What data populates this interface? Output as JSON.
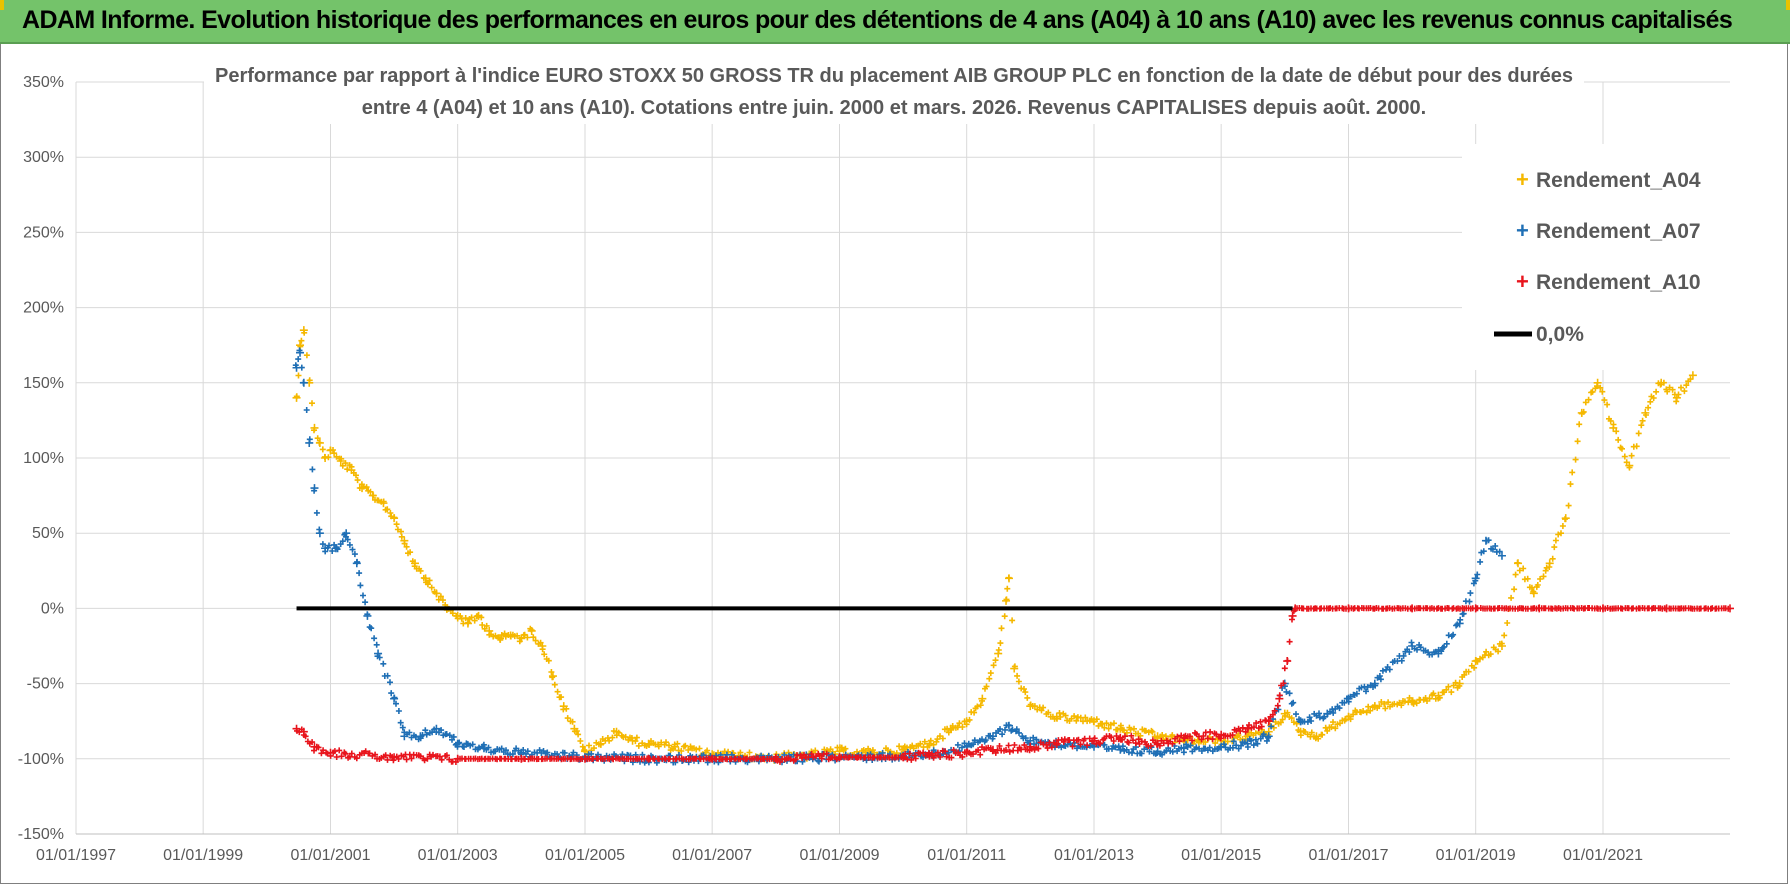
{
  "header": {
    "title": "ADAM Informe. Evolution historique des performances en euros pour des détentions de 4 ans (A04) à 10 ans (A10) avec les revenus connus capitalisés"
  },
  "chart_data": {
    "type": "scatter",
    "title_lines": [
      "Performance par rapport à l'indice EURO STOXX 50 GROSS TR  du placement AIB GROUP PLC en fonction de la date de début pour des durées",
      "entre 4 (A04) et 10 ans (A10).  Cotations entre juin. 2000 et mars. 2026.  Revenus CAPITALISES depuis août. 2000."
    ],
    "xlabel": "",
    "ylabel": "",
    "xlim": [
      "1997-01-01",
      "2022-12-31"
    ],
    "ylim": [
      -150,
      350
    ],
    "y_unit": "%",
    "y_ticks": [
      -150,
      -100,
      -50,
      0,
      50,
      100,
      150,
      200,
      250,
      300,
      350
    ],
    "y_tick_labels": [
      "-150%",
      "-100%",
      "-50%",
      "0%",
      "50%",
      "100%",
      "150%",
      "200%",
      "250%",
      "300%",
      "350%"
    ],
    "x_tick_labels": [
      "01/01/1997",
      "01/01/1999",
      "01/01/2001",
      "01/01/2003",
      "01/01/2005",
      "01/01/2007",
      "01/01/2009",
      "01/01/2011",
      "01/01/2013",
      "01/01/2015",
      "01/01/2017",
      "01/01/2019",
      "01/01/2021"
    ],
    "grid": true,
    "legend_position": "top-right",
    "series": [
      {
        "name": "Rendement_A04",
        "color": "#f5b800",
        "marker": "plus",
        "points": [
          [
            "2000-06-20",
            140
          ],
          [
            "2000-07-10",
            175
          ],
          [
            "2000-08-01",
            185
          ],
          [
            "2000-09-01",
            150
          ],
          [
            "2000-10-01",
            120
          ],
          [
            "2000-11-01",
            110
          ],
          [
            "2000-12-01",
            100
          ],
          [
            "2001-01-01",
            105
          ],
          [
            "2001-03-01",
            98
          ],
          [
            "2001-05-01",
            92
          ],
          [
            "2001-07-01",
            80
          ],
          [
            "2001-09-01",
            75
          ],
          [
            "2001-11-01",
            70
          ],
          [
            "2002-01-01",
            60
          ],
          [
            "2002-03-01",
            45
          ],
          [
            "2002-05-01",
            30
          ],
          [
            "2002-07-01",
            20
          ],
          [
            "2002-09-01",
            10
          ],
          [
            "2002-11-01",
            0
          ],
          [
            "2003-01-01",
            -5
          ],
          [
            "2003-03-01",
            -10
          ],
          [
            "2003-05-01",
            -5
          ],
          [
            "2003-07-01",
            -15
          ],
          [
            "2003-09-01",
            -20
          ],
          [
            "2003-11-01",
            -18
          ],
          [
            "2004-01-01",
            -20
          ],
          [
            "2004-03-01",
            -15
          ],
          [
            "2004-05-01",
            -25
          ],
          [
            "2004-07-01",
            -45
          ],
          [
            "2004-09-01",
            -65
          ],
          [
            "2004-11-01",
            -80
          ],
          [
            "2005-01-01",
            -95
          ],
          [
            "2005-04-01",
            -90
          ],
          [
            "2005-07-01",
            -82
          ],
          [
            "2005-10-01",
            -88
          ],
          [
            "2006-01-01",
            -90
          ],
          [
            "2006-06-01",
            -92
          ],
          [
            "2007-01-01",
            -97
          ],
          [
            "2007-06-01",
            -98
          ],
          [
            "2008-01-01",
            -99
          ],
          [
            "2008-06-01",
            -98
          ],
          [
            "2009-01-01",
            -95
          ],
          [
            "2009-06-01",
            -96
          ],
          [
            "2010-01-01",
            -94
          ],
          [
            "2010-06-01",
            -90
          ],
          [
            "2010-10-01",
            -80
          ],
          [
            "2011-01-01",
            -75
          ],
          [
            "2011-04-01",
            -60
          ],
          [
            "2011-07-01",
            -30
          ],
          [
            "2011-08-15",
            5
          ],
          [
            "2011-09-01",
            20
          ],
          [
            "2011-10-01",
            -40
          ],
          [
            "2012-01-01",
            -65
          ],
          [
            "2012-06-01",
            -72
          ],
          [
            "2013-01-01",
            -75
          ],
          [
            "2013-06-01",
            -80
          ],
          [
            "2014-01-01",
            -85
          ],
          [
            "2014-06-01",
            -88
          ],
          [
            "2015-01-01",
            -88
          ],
          [
            "2015-06-01",
            -85
          ],
          [
            "2015-10-01",
            -82
          ],
          [
            "2016-01-01",
            -70
          ],
          [
            "2016-04-01",
            -82
          ],
          [
            "2016-07-01",
            -85
          ],
          [
            "2017-01-01",
            -72
          ],
          [
            "2017-06-01",
            -65
          ],
          [
            "2018-01-01",
            -62
          ],
          [
            "2018-06-01",
            -58
          ],
          [
            "2018-10-01",
            -50
          ],
          [
            "2019-01-01",
            -35
          ],
          [
            "2019-06-01",
            -25
          ],
          [
            "2019-09-01",
            30
          ],
          [
            "2019-12-01",
            10
          ],
          [
            "2020-03-01",
            30
          ],
          [
            "2020-06-01",
            60
          ],
          [
            "2020-09-01",
            130
          ],
          [
            "2020-12-01",
            150
          ],
          [
            "2021-03-01",
            120
          ],
          [
            "2021-06-01",
            95
          ],
          [
            "2021-09-01",
            130
          ],
          [
            "2021-12-01",
            150
          ],
          [
            "2022-03-01",
            140
          ],
          [
            "2022-06-01",
            155
          ]
        ]
      },
      {
        "name": "Rendement_A07",
        "color": "#1f6fb5",
        "marker": "plus",
        "points": [
          [
            "2000-06-20",
            160
          ],
          [
            "2000-07-10",
            170
          ],
          [
            "2000-08-01",
            150
          ],
          [
            "2000-09-01",
            110
          ],
          [
            "2000-10-01",
            80
          ],
          [
            "2000-11-01",
            50
          ],
          [
            "2000-12-01",
            40
          ],
          [
            "2001-02-01",
            40
          ],
          [
            "2001-04-01",
            50
          ],
          [
            "2001-06-01",
            30
          ],
          [
            "2001-08-01",
            -5
          ],
          [
            "2001-10-01",
            -30
          ],
          [
            "2002-01-01",
            -60
          ],
          [
            "2002-03-01",
            -85
          ],
          [
            "2002-06-01",
            -85
          ],
          [
            "2002-09-01",
            -80
          ],
          [
            "2003-01-01",
            -90
          ],
          [
            "2003-06-01",
            -93
          ],
          [
            "2004-01-01",
            -96
          ],
          [
            "2005-01-01",
            -99
          ],
          [
            "2006-01-01",
            -100
          ],
          [
            "2007-01-01",
            -100
          ],
          [
            "2008-01-01",
            -100
          ],
          [
            "2009-01-01",
            -99
          ],
          [
            "2010-01-01",
            -98
          ],
          [
            "2010-06-01",
            -97
          ],
          [
            "2011-01-01",
            -92
          ],
          [
            "2011-06-01",
            -85
          ],
          [
            "2011-09-01",
            -78
          ],
          [
            "2012-01-01",
            -88
          ],
          [
            "2012-06-01",
            -90
          ],
          [
            "2013-01-01",
            -92
          ],
          [
            "2013-06-01",
            -94
          ],
          [
            "2014-01-01",
            -95
          ],
          [
            "2014-06-01",
            -93
          ],
          [
            "2015-01-01",
            -92
          ],
          [
            "2015-06-01",
            -90
          ],
          [
            "2015-10-01",
            -85
          ],
          [
            "2016-01-01",
            -50
          ],
          [
            "2016-04-01",
            -75
          ],
          [
            "2016-09-01",
            -70
          ],
          [
            "2017-01-01",
            -60
          ],
          [
            "2017-06-01",
            -50
          ],
          [
            "2018-01-01",
            -25
          ],
          [
            "2018-06-01",
            -30
          ],
          [
            "2018-10-01",
            -10
          ],
          [
            "2019-01-01",
            20
          ],
          [
            "2019-03-01",
            45
          ],
          [
            "2019-06-01",
            35
          ]
        ]
      },
      {
        "name": "Rendement_A10",
        "color": "#e8141c",
        "marker": "plus",
        "points": [
          [
            "2000-06-20",
            -80
          ],
          [
            "2000-08-01",
            -82
          ],
          [
            "2000-10-01",
            -92
          ],
          [
            "2001-01-01",
            -96
          ],
          [
            "2002-01-01",
            -99
          ],
          [
            "2003-01-01",
            -100
          ],
          [
            "2004-01-01",
            -100
          ],
          [
            "2005-01-01",
            -100
          ],
          [
            "2006-01-01",
            -100
          ],
          [
            "2007-01-01",
            -100
          ],
          [
            "2008-01-01",
            -100
          ],
          [
            "2009-01-01",
            -99
          ],
          [
            "2010-01-01",
            -99
          ],
          [
            "2010-06-01",
            -98
          ],
          [
            "2011-01-01",
            -96
          ],
          [
            "2011-06-01",
            -94
          ],
          [
            "2012-01-01",
            -92
          ],
          [
            "2012-06-01",
            -90
          ],
          [
            "2013-01-01",
            -88
          ],
          [
            "2013-06-01",
            -86
          ],
          [
            "2014-01-01",
            -90
          ],
          [
            "2014-06-01",
            -86
          ],
          [
            "2015-01-01",
            -84
          ],
          [
            "2015-06-01",
            -80
          ],
          [
            "2015-10-01",
            -75
          ],
          [
            "2015-12-01",
            -60
          ],
          [
            "2016-01-15",
            -35
          ],
          [
            "2016-02-15",
            -5
          ],
          [
            "2016-03-01",
            0
          ],
          [
            "2017-01-01",
            0
          ],
          [
            "2018-01-01",
            0
          ],
          [
            "2019-01-01",
            0
          ],
          [
            "2020-01-01",
            0
          ],
          [
            "2021-01-01",
            0
          ],
          [
            "2022-01-01",
            0
          ],
          [
            "2022-12-31",
            0
          ]
        ]
      }
    ],
    "reference_line": {
      "name": "0,0%",
      "value": 0,
      "color": "#000000",
      "from": "2000-06-20",
      "to": "2016-02-15"
    }
  }
}
